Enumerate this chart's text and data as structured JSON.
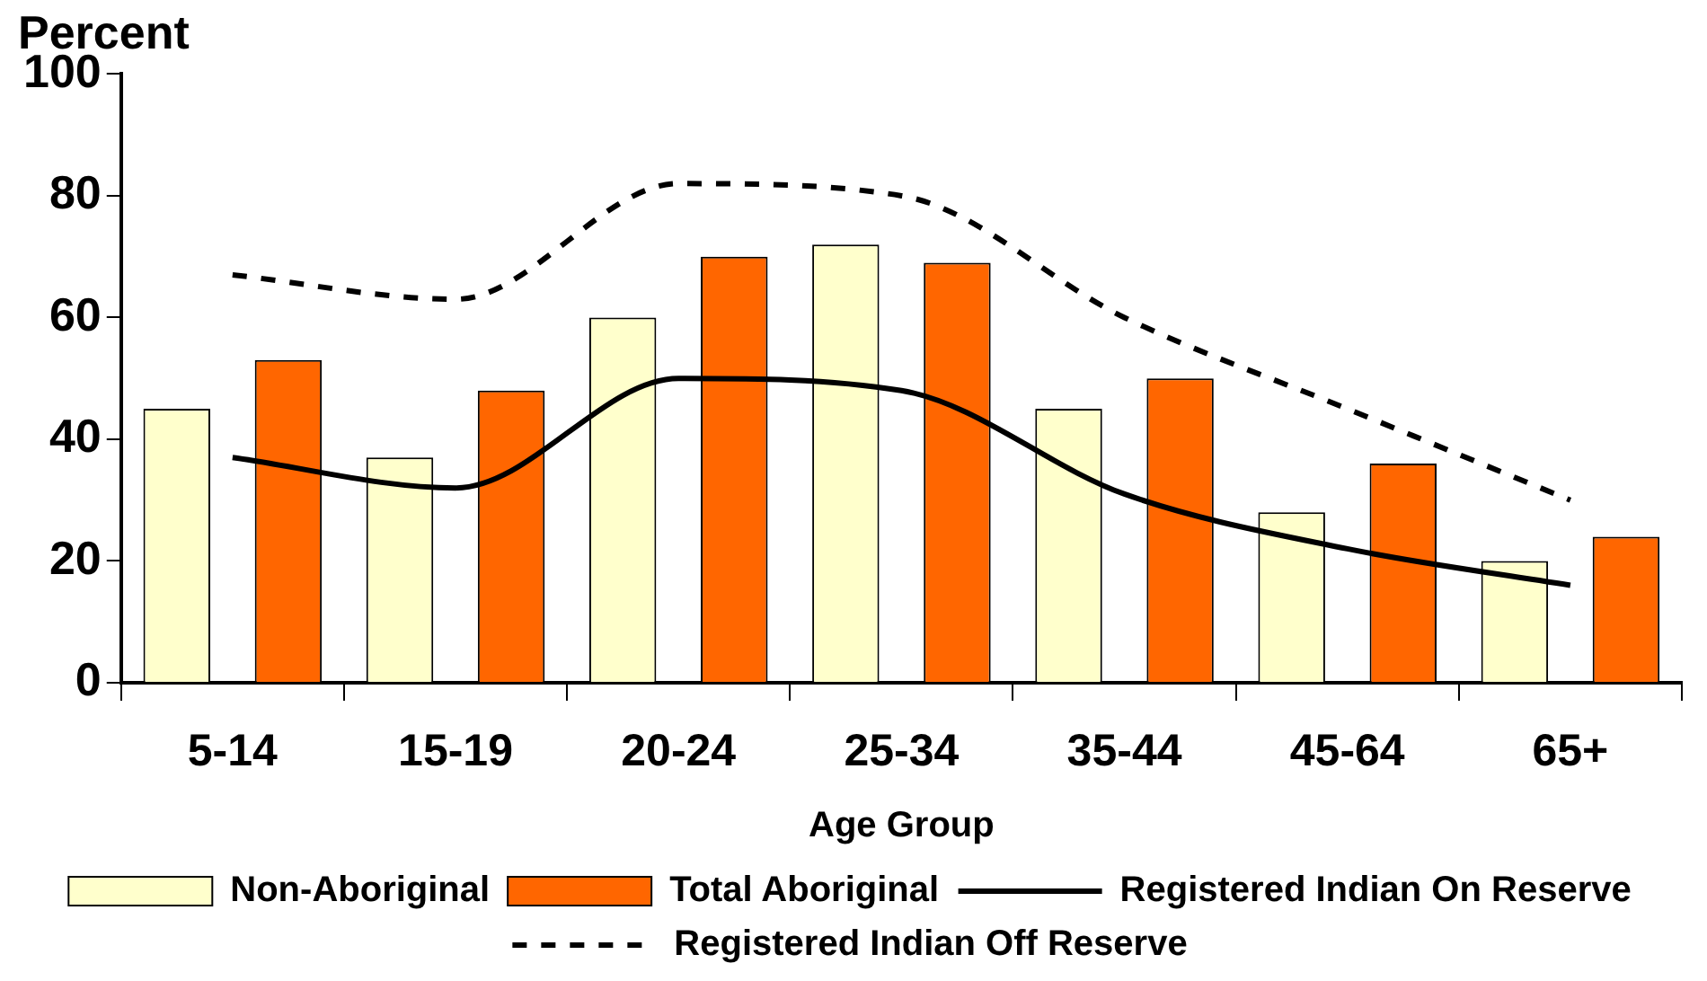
{
  "chart_data": {
    "type": "bar",
    "ylabel": "Percent",
    "xlabel": "Age Group",
    "categories": [
      "5-14",
      "15-19",
      "20-24",
      "25-34",
      "35-44",
      "45-64",
      "65+"
    ],
    "series": [
      {
        "name": "Non-Aboriginal",
        "color": "#ffffcc",
        "values": [
          45,
          37,
          60,
          72,
          45,
          28,
          20
        ]
      },
      {
        "name": "Total Aboriginal",
        "color": "#ff6600",
        "values": [
          53,
          48,
          70,
          69,
          50,
          36,
          24
        ]
      },
      {
        "name": "Registered Indian On Reserve",
        "type": "line",
        "color": "#000000",
        "line_style": "solid",
        "values": [
          37,
          32,
          50,
          48,
          31,
          22,
          16
        ]
      },
      {
        "name": "Registered Indian Off Reserve",
        "type": "line",
        "color": "#000000",
        "line_style": "dashed",
        "values": [
          67,
          63,
          82,
          80,
          60,
          45,
          30
        ]
      }
    ],
    "ylim": [
      0,
      100
    ],
    "yticks": [
      0,
      20,
      40,
      60,
      80,
      100
    ],
    "grid": false,
    "legend": "bottom",
    "marker": "none"
  }
}
